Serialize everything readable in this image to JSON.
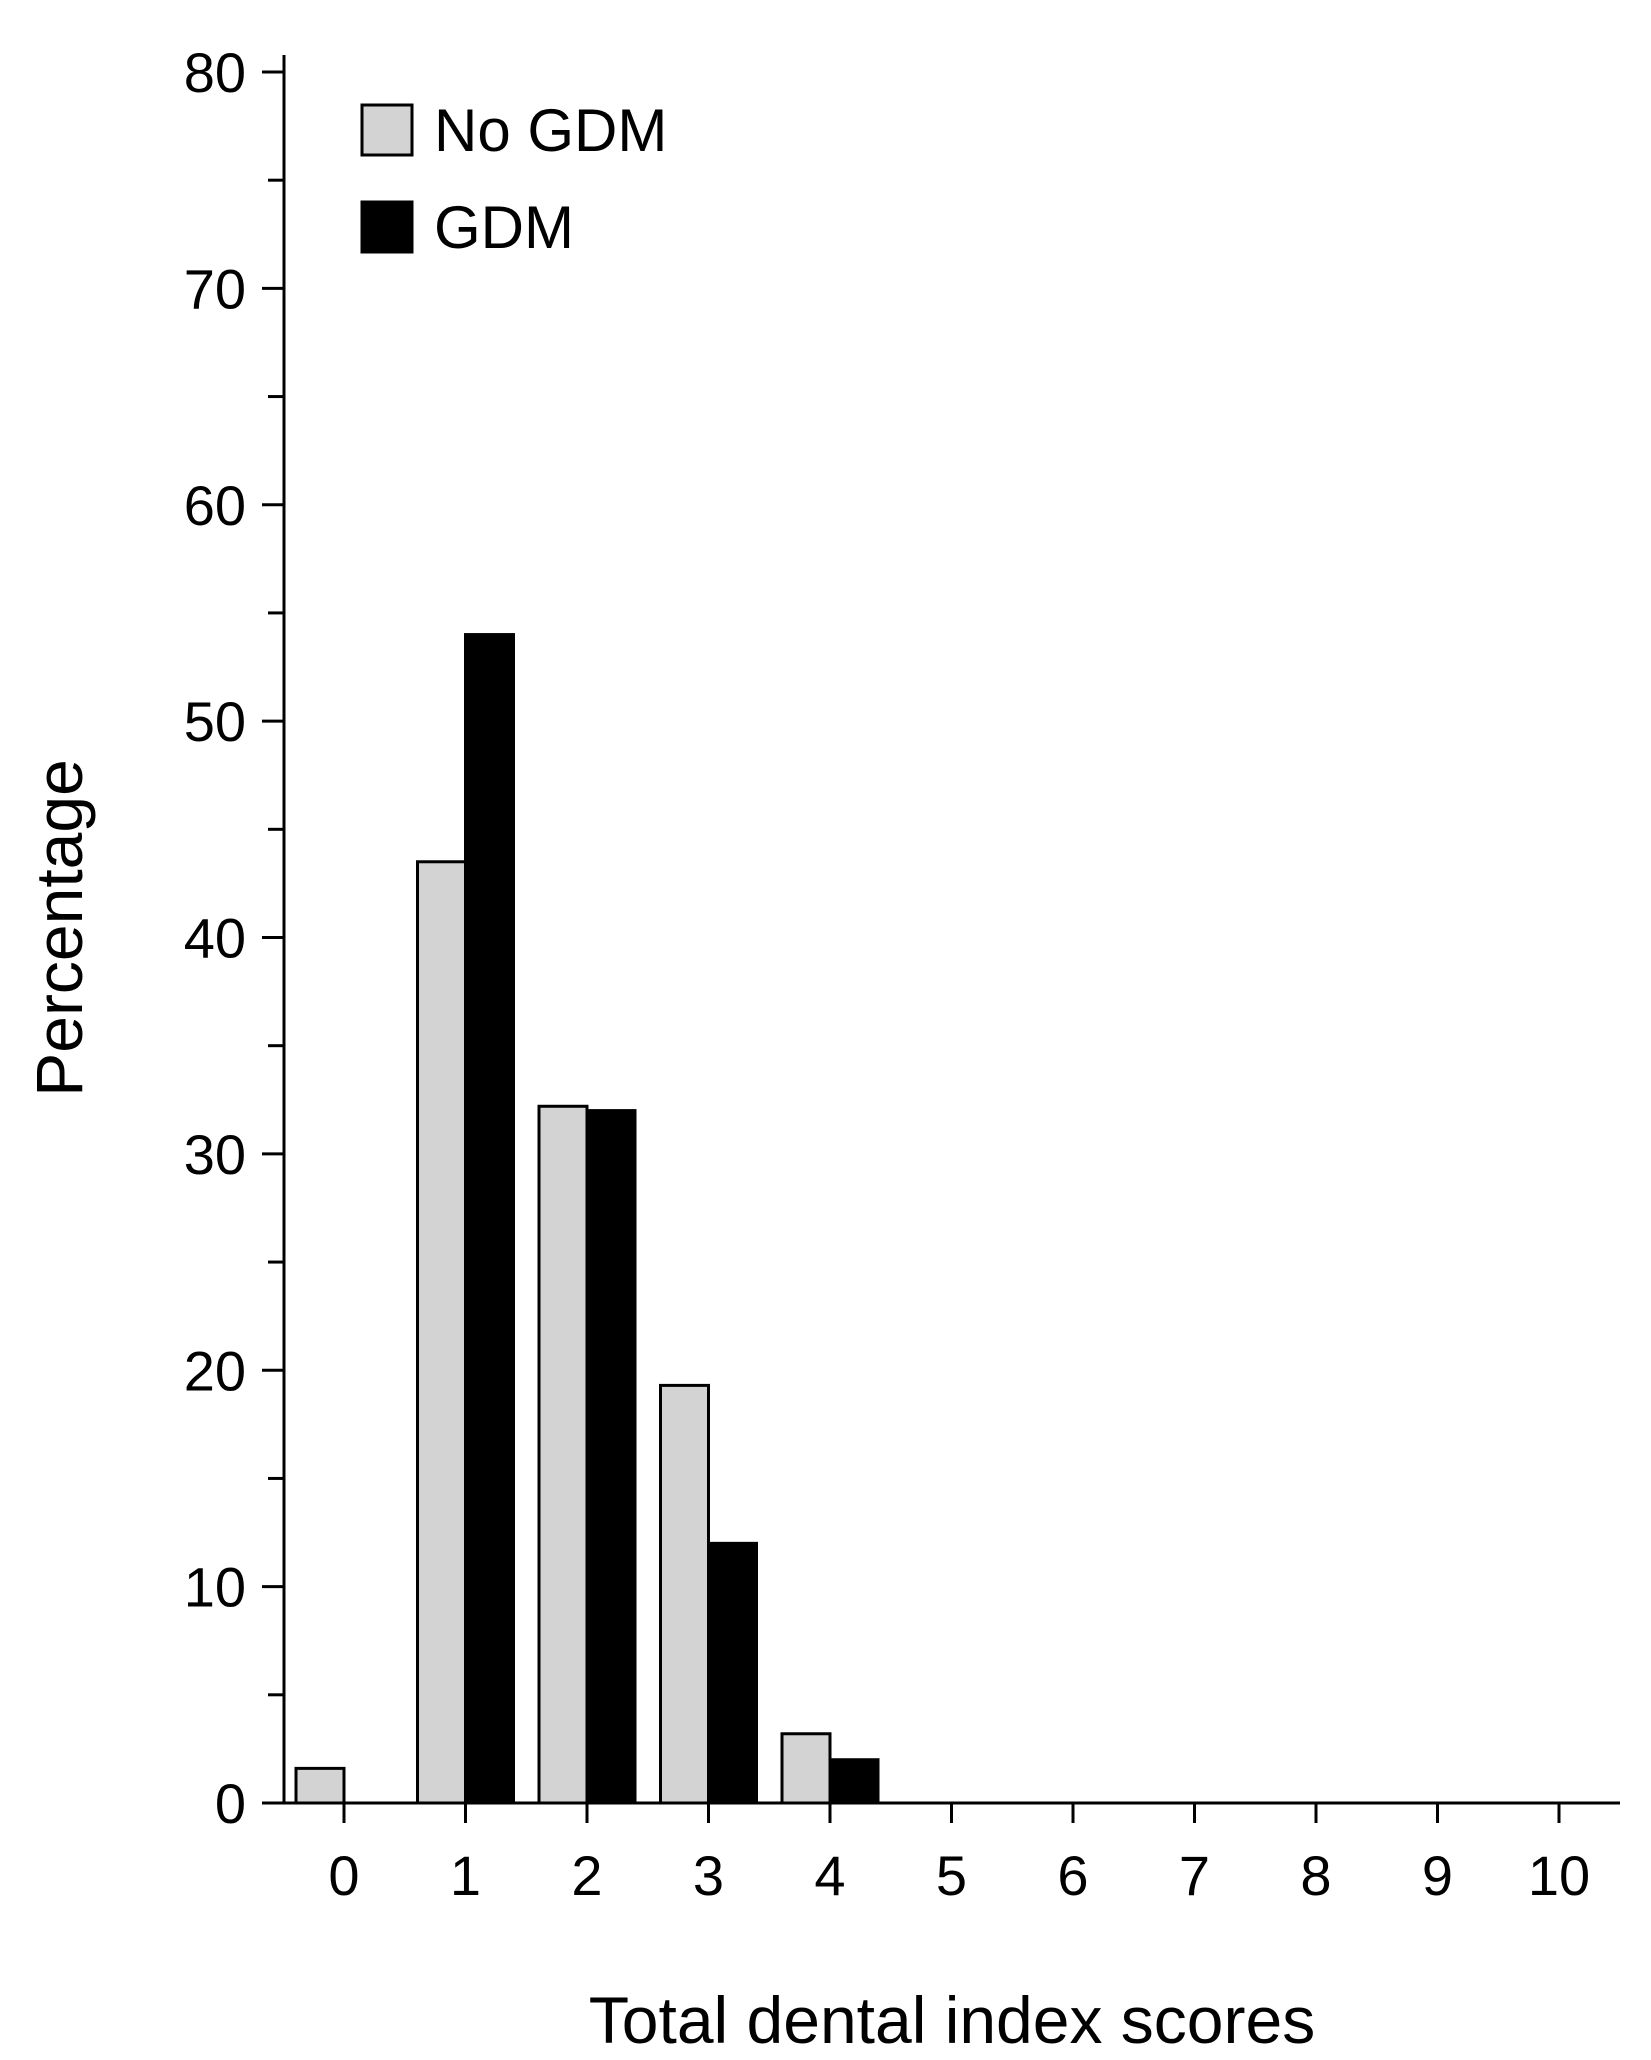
{
  "chart_data": {
    "type": "bar",
    "categories": [
      "0",
      "1",
      "2",
      "3",
      "4",
      "5",
      "6",
      "7",
      "8",
      "9",
      "10"
    ],
    "series": [
      {
        "name": "No GDM",
        "color": "#d3d3d3",
        "values": [
          1.6,
          43.5,
          32.2,
          19.3,
          3.2,
          0,
          0,
          0,
          0,
          0,
          0
        ]
      },
      {
        "name": "GDM",
        "color": "#000000",
        "values": [
          0,
          54.0,
          32.0,
          12.0,
          2.0,
          0,
          0,
          0,
          0,
          0,
          0
        ]
      }
    ],
    "xlabel": "Total dental index scores",
    "ylabel": "Percentage",
    "ylim": [
      0,
      80
    ],
    "yticks": [
      "0",
      "10",
      "20",
      "30",
      "40",
      "50",
      "60",
      "70",
      "80"
    ],
    "ytick_values": [
      0,
      10,
      20,
      30,
      40,
      50,
      60,
      70,
      80
    ],
    "yminor_step": 5,
    "legend_position": "top-left",
    "grid": false
  }
}
